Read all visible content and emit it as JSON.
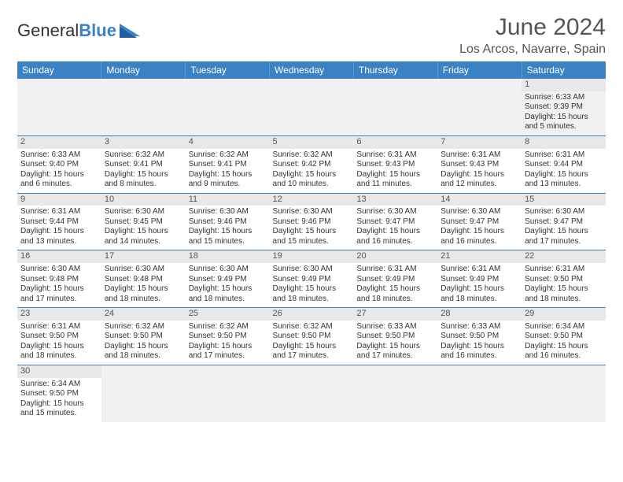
{
  "logo": {
    "text1": "General",
    "text2": "Blue"
  },
  "title": "June 2024",
  "location": "Los Arcos, Navarre, Spain",
  "weekday_header_bg": "#3b82c4",
  "weekdays": [
    "Sunday",
    "Monday",
    "Tuesday",
    "Wednesday",
    "Thursday",
    "Friday",
    "Saturday"
  ],
  "weeks": [
    [
      null,
      null,
      null,
      null,
      null,
      null,
      {
        "n": "1",
        "sunrise": "Sunrise: 6:33 AM",
        "sunset": "Sunset: 9:39 PM",
        "daylight": "Daylight: 15 hours and 5 minutes."
      }
    ],
    [
      {
        "n": "2",
        "sunrise": "Sunrise: 6:33 AM",
        "sunset": "Sunset: 9:40 PM",
        "daylight": "Daylight: 15 hours and 6 minutes."
      },
      {
        "n": "3",
        "sunrise": "Sunrise: 6:32 AM",
        "sunset": "Sunset: 9:41 PM",
        "daylight": "Daylight: 15 hours and 8 minutes."
      },
      {
        "n": "4",
        "sunrise": "Sunrise: 6:32 AM",
        "sunset": "Sunset: 9:41 PM",
        "daylight": "Daylight: 15 hours and 9 minutes."
      },
      {
        "n": "5",
        "sunrise": "Sunrise: 6:32 AM",
        "sunset": "Sunset: 9:42 PM",
        "daylight": "Daylight: 15 hours and 10 minutes."
      },
      {
        "n": "6",
        "sunrise": "Sunrise: 6:31 AM",
        "sunset": "Sunset: 9:43 PM",
        "daylight": "Daylight: 15 hours and 11 minutes."
      },
      {
        "n": "7",
        "sunrise": "Sunrise: 6:31 AM",
        "sunset": "Sunset: 9:43 PM",
        "daylight": "Daylight: 15 hours and 12 minutes."
      },
      {
        "n": "8",
        "sunrise": "Sunrise: 6:31 AM",
        "sunset": "Sunset: 9:44 PM",
        "daylight": "Daylight: 15 hours and 13 minutes."
      }
    ],
    [
      {
        "n": "9",
        "sunrise": "Sunrise: 6:31 AM",
        "sunset": "Sunset: 9:44 PM",
        "daylight": "Daylight: 15 hours and 13 minutes."
      },
      {
        "n": "10",
        "sunrise": "Sunrise: 6:30 AM",
        "sunset": "Sunset: 9:45 PM",
        "daylight": "Daylight: 15 hours and 14 minutes."
      },
      {
        "n": "11",
        "sunrise": "Sunrise: 6:30 AM",
        "sunset": "Sunset: 9:46 PM",
        "daylight": "Daylight: 15 hours and 15 minutes."
      },
      {
        "n": "12",
        "sunrise": "Sunrise: 6:30 AM",
        "sunset": "Sunset: 9:46 PM",
        "daylight": "Daylight: 15 hours and 15 minutes."
      },
      {
        "n": "13",
        "sunrise": "Sunrise: 6:30 AM",
        "sunset": "Sunset: 9:47 PM",
        "daylight": "Daylight: 15 hours and 16 minutes."
      },
      {
        "n": "14",
        "sunrise": "Sunrise: 6:30 AM",
        "sunset": "Sunset: 9:47 PM",
        "daylight": "Daylight: 15 hours and 16 minutes."
      },
      {
        "n": "15",
        "sunrise": "Sunrise: 6:30 AM",
        "sunset": "Sunset: 9:47 PM",
        "daylight": "Daylight: 15 hours and 17 minutes."
      }
    ],
    [
      {
        "n": "16",
        "sunrise": "Sunrise: 6:30 AM",
        "sunset": "Sunset: 9:48 PM",
        "daylight": "Daylight: 15 hours and 17 minutes."
      },
      {
        "n": "17",
        "sunrise": "Sunrise: 6:30 AM",
        "sunset": "Sunset: 9:48 PM",
        "daylight": "Daylight: 15 hours and 18 minutes."
      },
      {
        "n": "18",
        "sunrise": "Sunrise: 6:30 AM",
        "sunset": "Sunset: 9:49 PM",
        "daylight": "Daylight: 15 hours and 18 minutes."
      },
      {
        "n": "19",
        "sunrise": "Sunrise: 6:30 AM",
        "sunset": "Sunset: 9:49 PM",
        "daylight": "Daylight: 15 hours and 18 minutes."
      },
      {
        "n": "20",
        "sunrise": "Sunrise: 6:31 AM",
        "sunset": "Sunset: 9:49 PM",
        "daylight": "Daylight: 15 hours and 18 minutes."
      },
      {
        "n": "21",
        "sunrise": "Sunrise: 6:31 AM",
        "sunset": "Sunset: 9:49 PM",
        "daylight": "Daylight: 15 hours and 18 minutes."
      },
      {
        "n": "22",
        "sunrise": "Sunrise: 6:31 AM",
        "sunset": "Sunset: 9:50 PM",
        "daylight": "Daylight: 15 hours and 18 minutes."
      }
    ],
    [
      {
        "n": "23",
        "sunrise": "Sunrise: 6:31 AM",
        "sunset": "Sunset: 9:50 PM",
        "daylight": "Daylight: 15 hours and 18 minutes."
      },
      {
        "n": "24",
        "sunrise": "Sunrise: 6:32 AM",
        "sunset": "Sunset: 9:50 PM",
        "daylight": "Daylight: 15 hours and 18 minutes."
      },
      {
        "n": "25",
        "sunrise": "Sunrise: 6:32 AM",
        "sunset": "Sunset: 9:50 PM",
        "daylight": "Daylight: 15 hours and 17 minutes."
      },
      {
        "n": "26",
        "sunrise": "Sunrise: 6:32 AM",
        "sunset": "Sunset: 9:50 PM",
        "daylight": "Daylight: 15 hours and 17 minutes."
      },
      {
        "n": "27",
        "sunrise": "Sunrise: 6:33 AM",
        "sunset": "Sunset: 9:50 PM",
        "daylight": "Daylight: 15 hours and 17 minutes."
      },
      {
        "n": "28",
        "sunrise": "Sunrise: 6:33 AM",
        "sunset": "Sunset: 9:50 PM",
        "daylight": "Daylight: 15 hours and 16 minutes."
      },
      {
        "n": "29",
        "sunrise": "Sunrise: 6:34 AM",
        "sunset": "Sunset: 9:50 PM",
        "daylight": "Daylight: 15 hours and 16 minutes."
      }
    ],
    [
      {
        "n": "30",
        "sunrise": "Sunrise: 6:34 AM",
        "sunset": "Sunset: 9:50 PM",
        "daylight": "Daylight: 15 hours and 15 minutes."
      },
      null,
      null,
      null,
      null,
      null,
      null
    ]
  ]
}
